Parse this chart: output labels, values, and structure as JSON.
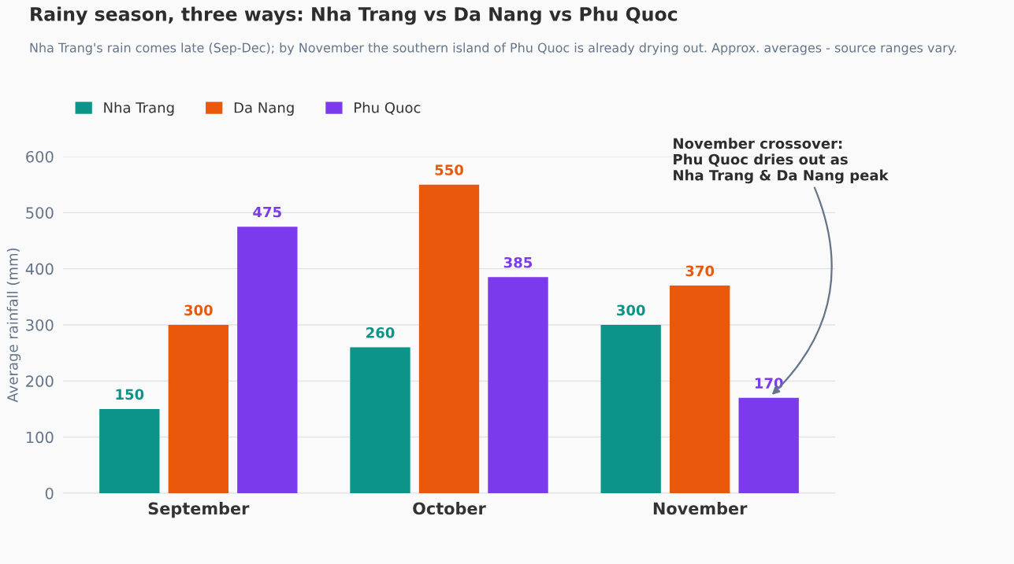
{
  "chart_data": {
    "type": "bar",
    "title": "Rainy season, three ways: Nha Trang vs Da Nang vs Phu Quoc",
    "subtitle": "Nha Trang's rain comes late (Sep-Dec); by November the southern island of Phu Quoc is already drying out. Approx. averages - source ranges vary.",
    "ylabel": "Average rainfall (mm)",
    "categories": [
      "September",
      "October",
      "November"
    ],
    "series": [
      {
        "name": "Nha Trang",
        "color": "#0d9488",
        "values": [
          150,
          260,
          300
        ]
      },
      {
        "name": "Da Nang",
        "color": "#ea580c",
        "values": [
          300,
          550,
          370
        ]
      },
      {
        "name": "Phu Quoc",
        "color": "#7c3aed",
        "values": [
          475,
          385,
          170
        ]
      }
    ],
    "ylim": [
      0,
      600
    ],
    "yticks": [
      0,
      100,
      200,
      300,
      400,
      500,
      600
    ],
    "grid": "y",
    "legend": "top left",
    "data_labels": true,
    "annotations": [
      "November crossover:\nPhu Quoc dries out as\nNha Trang & Da Nang peak"
    ]
  }
}
